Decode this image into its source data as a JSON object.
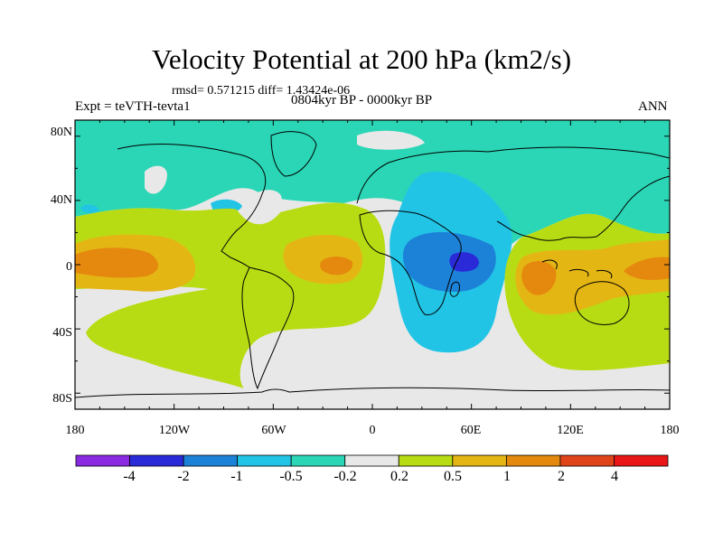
{
  "title": "Velocity Potential at 200 hPa (km2/s)",
  "stats": "rmsd= 0.571215 diff= 1.43424e-06",
  "experiment": "Expt = teVTH-tevta1",
  "period": "0804kyr BP - 0000kyr BP",
  "season": "ANN",
  "map": {
    "projection": "cylindrical equidistant",
    "lon_range": [
      -180,
      180
    ],
    "lat_range": [
      -90,
      90
    ],
    "y_ticks": [
      "80N",
      "40N",
      "0",
      "40S",
      "80S"
    ],
    "x_ticks": [
      "180",
      "120W",
      "60W",
      "0",
      "60E",
      "120E",
      "180"
    ],
    "coastlines": true
  },
  "colorbar": {
    "levels": [
      "-4",
      "-2",
      "-1",
      "-0.5",
      "-0.2",
      "0.2",
      "0.5",
      "1",
      "2",
      "4"
    ],
    "colors": [
      "#8a2be2",
      "#2a2ad8",
      "#1c82d8",
      "#22c4e6",
      "#2ad6b6",
      "#e8e8e8",
      "#b8dc14",
      "#e4b614",
      "#e4880e",
      "#e0441a",
      "#e81616"
    ]
  }
}
